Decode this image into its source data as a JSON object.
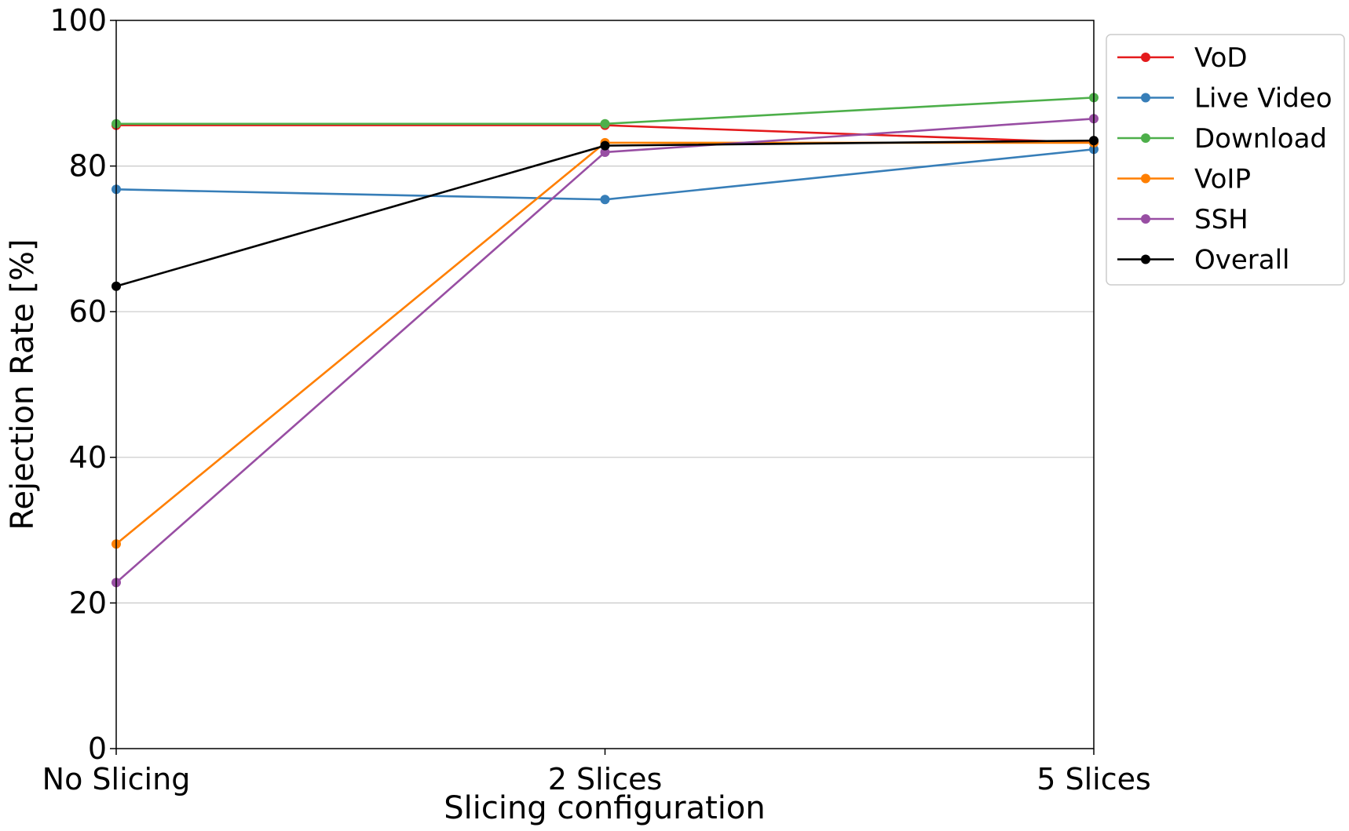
{
  "chart_data": {
    "type": "line",
    "xlabel": "Slicing configuration",
    "ylabel": "Rejection Rate [%]",
    "categories": [
      "No Slicing",
      "2 Slices",
      "5 Slices"
    ],
    "ylim": [
      0,
      100
    ],
    "yticks": [
      0,
      20,
      40,
      60,
      80,
      100
    ],
    "grid": "horizontal",
    "legend_position": "outside-right-top",
    "series": [
      {
        "name": "VoD",
        "color": "#e41a1c",
        "values": [
          85.6,
          85.6,
          83.2
        ]
      },
      {
        "name": "Live Video",
        "color": "#377eb8",
        "values": [
          76.8,
          75.4,
          82.3
        ]
      },
      {
        "name": "Download",
        "color": "#4daf4a",
        "values": [
          85.8,
          85.8,
          89.4
        ]
      },
      {
        "name": "VoIP",
        "color": "#ff7f00",
        "values": [
          28.1,
          83.2,
          83.2
        ]
      },
      {
        "name": "SSH",
        "color": "#984ea3",
        "values": [
          22.8,
          81.9,
          86.5
        ]
      },
      {
        "name": "Overall",
        "color": "#000000",
        "values": [
          63.5,
          82.8,
          83.5
        ]
      }
    ]
  }
}
